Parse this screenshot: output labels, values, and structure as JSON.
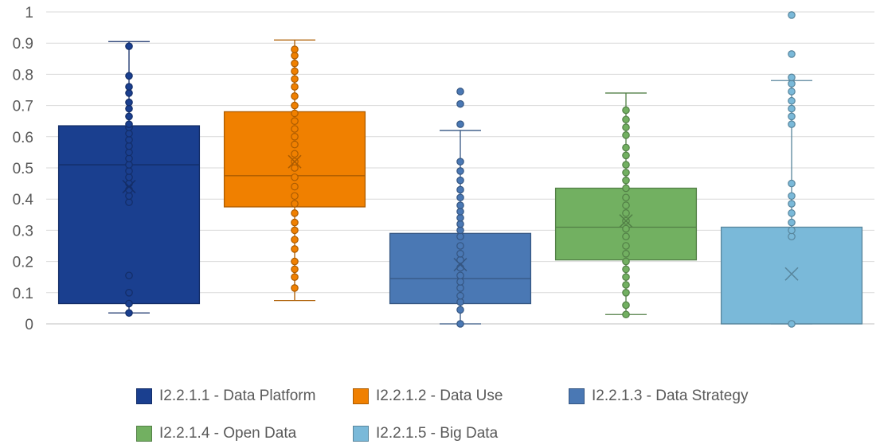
{
  "chart_data": {
    "type": "boxplot",
    "title": "",
    "xlabel": "",
    "ylabel": "",
    "ylim": [
      0,
      1
    ],
    "y_ticks": [
      "0",
      "0.1",
      "0.2",
      "0.3",
      "0.4",
      "0.5",
      "0.6",
      "0.7",
      "0.8",
      "0.9",
      "1"
    ],
    "grid": "horizontal",
    "legend_placement": "bottom",
    "series": [
      {
        "name": "I2.2.1.1 - Data Platform",
        "color": "#1a3f8f",
        "min": 0.035,
        "q1": 0.065,
        "median": 0.51,
        "q3": 0.635,
        "max": 0.905,
        "mean": 0.44,
        "points": [
          0.035,
          0.065,
          0.1,
          0.155,
          0.39,
          0.41,
          0.43,
          0.45,
          0.47,
          0.49,
          0.51,
          0.53,
          0.55,
          0.57,
          0.59,
          0.61,
          0.63,
          0.64,
          0.665,
          0.69,
          0.71,
          0.74,
          0.76,
          0.795,
          0.89
        ]
      },
      {
        "name": "I2.2.1.2 - Data Use",
        "color": "#f08000",
        "min": 0.075,
        "q1": 0.375,
        "median": 0.475,
        "q3": 0.68,
        "max": 0.91,
        "mean": 0.52,
        "points": [
          0.115,
          0.15,
          0.175,
          0.2,
          0.24,
          0.27,
          0.3,
          0.325,
          0.355,
          0.385,
          0.41,
          0.44,
          0.47,
          0.5,
          0.52,
          0.545,
          0.575,
          0.6,
          0.625,
          0.65,
          0.675,
          0.7,
          0.73,
          0.76,
          0.785,
          0.81,
          0.835,
          0.86,
          0.88
        ]
      },
      {
        "name": "I2.2.1.3 - Data Strategy",
        "color": "#4a78b4",
        "min": 0.0,
        "q1": 0.065,
        "median": 0.145,
        "q3": 0.29,
        "max": 0.62,
        "mean": 0.19,
        "points": [
          0.0,
          0.045,
          0.07,
          0.09,
          0.115,
          0.135,
          0.155,
          0.18,
          0.205,
          0.225,
          0.25,
          0.28,
          0.3,
          0.32,
          0.34,
          0.36,
          0.38,
          0.405,
          0.43,
          0.46,
          0.49,
          0.52,
          0.64,
          0.705,
          0.745
        ]
      },
      {
        "name": "I2.2.1.4 - Open Data",
        "color": "#72b061",
        "min": 0.03,
        "q1": 0.205,
        "median": 0.31,
        "q3": 0.435,
        "max": 0.74,
        "mean": 0.33,
        "points": [
          0.03,
          0.06,
          0.1,
          0.125,
          0.15,
          0.175,
          0.2,
          0.225,
          0.25,
          0.28,
          0.305,
          0.33,
          0.355,
          0.38,
          0.405,
          0.435,
          0.46,
          0.485,
          0.51,
          0.54,
          0.565,
          0.605,
          0.63,
          0.655,
          0.685
        ]
      },
      {
        "name": "I2.2.1.5 - Big Data",
        "color": "#7ab9d9",
        "min": 0.0,
        "q1": 0.0,
        "median": 0.0,
        "q3": 0.31,
        "max": 0.78,
        "mean": 0.16,
        "points": [
          0.0,
          0.28,
          0.3,
          0.325,
          0.355,
          0.385,
          0.41,
          0.45,
          0.64,
          0.665,
          0.69,
          0.715,
          0.745,
          0.77,
          0.79,
          0.865,
          0.99
        ]
      }
    ]
  },
  "colors": {
    "grid": "#d9d9d9",
    "axis": "#bfbfbf",
    "text": "#595959"
  }
}
